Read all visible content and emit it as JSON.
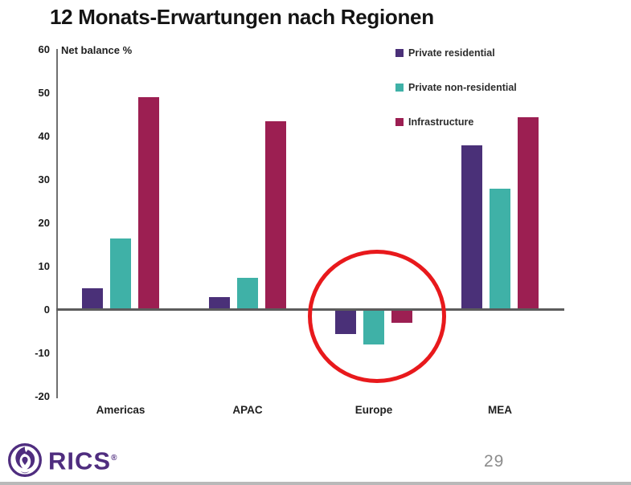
{
  "page": {
    "title": "12 Monats-Erwartungen nach Regionen",
    "page_number": "29",
    "logo_text": "RICS",
    "logo_registered": "®",
    "brand_color": "#4F2D7F"
  },
  "chart_data": {
    "type": "bar",
    "title": "12 Monats-Erwartungen nach Regionen",
    "ylabel": "Net balance %",
    "xlabel": "",
    "categories": [
      "Americas",
      "APAC",
      "Europe",
      "MEA"
    ],
    "series": [
      {
        "name": "Private residential",
        "color": "#4a3078",
        "values": [
          5,
          3,
          -5.5,
          38
        ]
      },
      {
        "name": "Private non-residential",
        "color": "#3fb1a7",
        "values": [
          16.5,
          7.5,
          -8,
          28
        ]
      },
      {
        "name": "Infrastructure",
        "color": "#9c1f52",
        "values": [
          49,
          43.5,
          -3,
          44.5
        ]
      }
    ],
    "y_ticks": [
      60,
      50,
      40,
      30,
      20,
      10,
      0,
      -10,
      -20
    ],
    "ylim": [
      -20,
      60
    ],
    "grid": false,
    "legend_position": "top-right",
    "annotation": {
      "type": "circle-highlight",
      "target_category": "Europe",
      "color": "#e8191c"
    }
  }
}
